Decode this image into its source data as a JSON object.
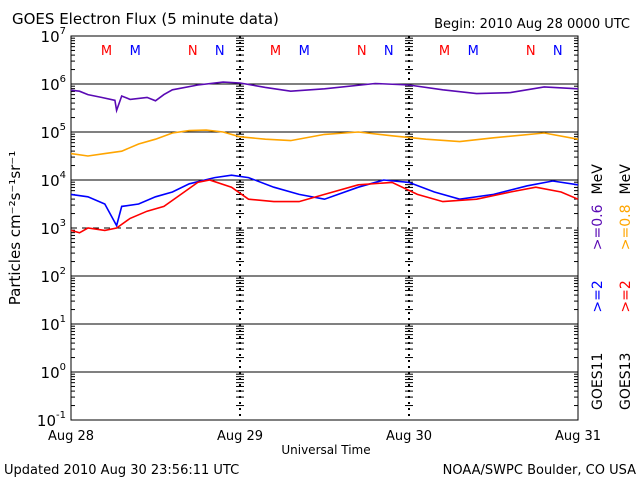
{
  "chart_data": {
    "type": "line",
    "title": "GOES Electron Flux (5 minute data)",
    "begin": "Begin: 2010 Aug 28 0000 UTC",
    "xlabel": "Universal Time",
    "ylabel": "Particles cm⁻²s⁻¹sr⁻¹",
    "x_ticks": [
      "Aug 28",
      "Aug 29",
      "Aug 30",
      "Aug 31"
    ],
    "xlim_days": [
      0,
      3
    ],
    "y_scale": "log",
    "ylim_log10": [
      -1,
      7
    ],
    "y_ticks": [
      {
        "base": "10",
        "exp": "7"
      },
      {
        "base": "10",
        "exp": "6"
      },
      {
        "base": "10",
        "exp": "5"
      },
      {
        "base": "10",
        "exp": "4"
      },
      {
        "base": "10",
        "exp": "3"
      },
      {
        "base": "10",
        "exp": "2"
      },
      {
        "base": "10",
        "exp": "1"
      },
      {
        "base": "10",
        "exp": "0"
      },
      {
        "base": "10",
        "exp": "-1"
      }
    ],
    "threshold_log10": 3,
    "markers": [
      {
        "label": "M",
        "color": "#ff0000",
        "day_offset": 0.21
      },
      {
        "label": "M",
        "color": "#0000ff",
        "day_offset": 0.38
      },
      {
        "label": "N",
        "color": "#ff0000",
        "day_offset": 0.72
      },
      {
        "label": "N",
        "color": "#0000ff",
        "day_offset": 0.88
      }
    ],
    "series": [
      {
        "name": ">=0.6 MeV",
        "satellite": "GOES11",
        "color": "#5a0ab4",
        "x": [
          0,
          0.05,
          0.1,
          0.18,
          0.26,
          0.27,
          0.3,
          0.35,
          0.45,
          0.5,
          0.55,
          0.6,
          0.75,
          0.9,
          1.0,
          1.15,
          1.3,
          1.5,
          1.8,
          2.0,
          2.2,
          2.4,
          2.6,
          2.8,
          3.0
        ],
        "y": [
          5.87,
          5.85,
          5.78,
          5.72,
          5.66,
          5.45,
          5.75,
          5.68,
          5.72,
          5.65,
          5.78,
          5.88,
          5.98,
          6.04,
          6.02,
          5.93,
          5.85,
          5.9,
          6.01,
          5.98,
          5.88,
          5.8,
          5.82,
          5.94,
          5.9
        ]
      },
      {
        "name": ">=0.8 MeV",
        "satellite": "GOES13",
        "color": "#ffa500",
        "x": [
          0,
          0.1,
          0.2,
          0.3,
          0.4,
          0.5,
          0.6,
          0.7,
          0.8,
          0.9,
          1.0,
          1.15,
          1.3,
          1.5,
          1.7,
          1.9,
          2.1,
          2.3,
          2.5,
          2.8,
          3.0
        ],
        "y": [
          4.55,
          4.5,
          4.55,
          4.6,
          4.75,
          4.85,
          4.98,
          5.03,
          5.04,
          5.0,
          4.9,
          4.85,
          4.82,
          4.95,
          5.0,
          4.92,
          4.85,
          4.8,
          4.88,
          4.98,
          4.85
        ]
      },
      {
        "name": ">=2 MeV",
        "satellite": "GOES11",
        "color": "#0000ff",
        "x": [
          0,
          0.1,
          0.2,
          0.27,
          0.3,
          0.4,
          0.5,
          0.6,
          0.7,
          0.85,
          0.95,
          1.05,
          1.2,
          1.35,
          1.5,
          1.7,
          1.85,
          2.0,
          2.15,
          2.3,
          2.5,
          2.7,
          2.85,
          3.0
        ],
        "y": [
          3.7,
          3.65,
          3.5,
          3.05,
          3.45,
          3.5,
          3.65,
          3.75,
          3.92,
          4.05,
          4.1,
          4.05,
          3.85,
          3.7,
          3.6,
          3.85,
          4.0,
          3.95,
          3.75,
          3.6,
          3.7,
          3.88,
          3.98,
          3.9
        ]
      },
      {
        "name": ">=2 MeV",
        "satellite": "GOES13",
        "color": "#ff0000",
        "x": [
          0,
          0.05,
          0.1,
          0.2,
          0.27,
          0.35,
          0.45,
          0.55,
          0.65,
          0.75,
          0.82,
          0.95,
          1.05,
          1.2,
          1.35,
          1.5,
          1.7,
          1.9,
          2.05,
          2.2,
          2.4,
          2.6,
          2.75,
          2.9,
          3.0
        ],
        "y": [
          2.95,
          2.9,
          3.0,
          2.95,
          3.0,
          3.2,
          3.35,
          3.45,
          3.7,
          3.95,
          4.0,
          3.85,
          3.6,
          3.55,
          3.55,
          3.7,
          3.9,
          3.95,
          3.7,
          3.55,
          3.6,
          3.75,
          3.85,
          3.75,
          3.6
        ]
      }
    ],
    "legend": [
      {
        "sat": "GOES11",
        "ch1": ">=2",
        "ch2": ">=0.6",
        "unit": "MeV",
        "c1": "#0000ff",
        "c2": "#5a0ab4"
      },
      {
        "sat": "GOES13",
        "ch1": ">=2",
        "ch2": ">=0.8",
        "unit": "MeV",
        "c1": "#ff0000",
        "c2": "#ffa500"
      }
    ],
    "legend_placement": "right"
  },
  "footer": {
    "updated": "Updated 2010 Aug 30 23:56:11 UTC",
    "credit": "NOAA/SWPC Boulder, CO USA"
  }
}
